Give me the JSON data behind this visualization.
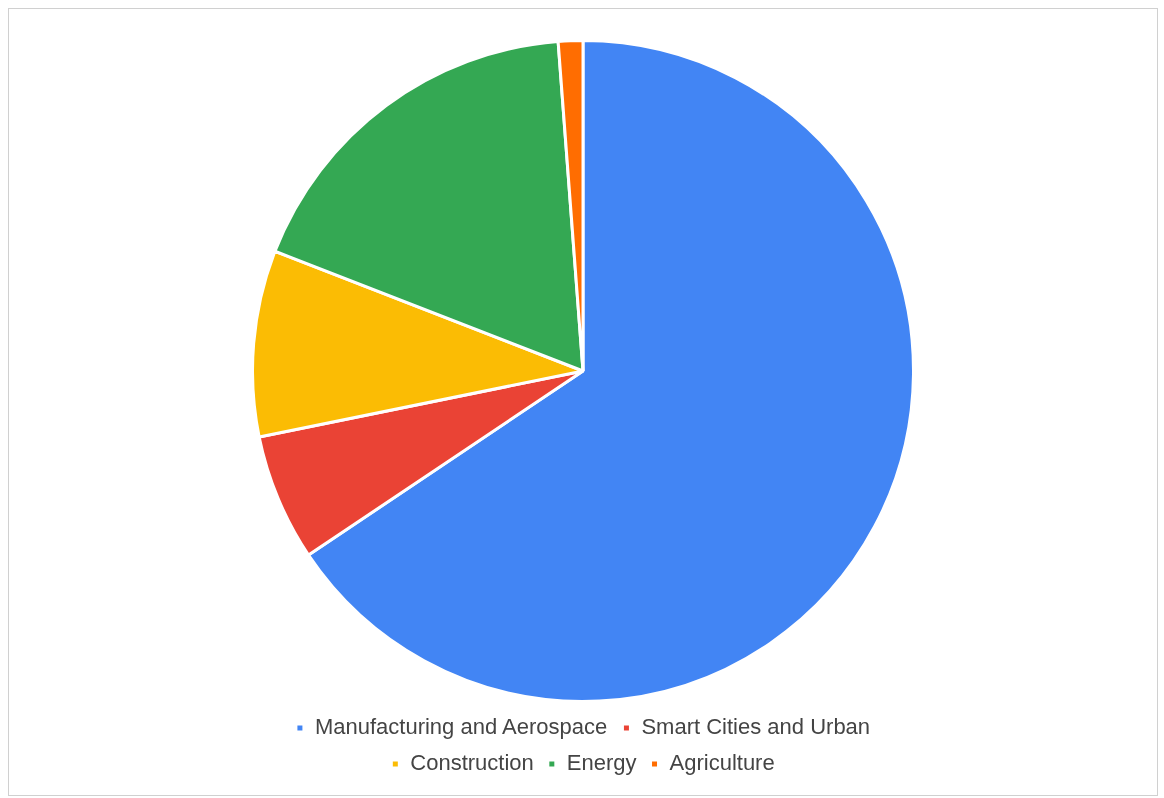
{
  "chart_data": {
    "type": "pie",
    "categories": [
      "Manufacturing and Aerospace",
      "Smart Cities and Urban",
      "Construction",
      "Energy",
      "Agriculture"
    ],
    "values": [
      65.6,
      6.2,
      9.1,
      17.9,
      1.2
    ],
    "colors": [
      "#4285f4",
      "#ea4335",
      "#fbbc04",
      "#34a853",
      "#ff6d01"
    ],
    "legend": "bottom"
  }
}
